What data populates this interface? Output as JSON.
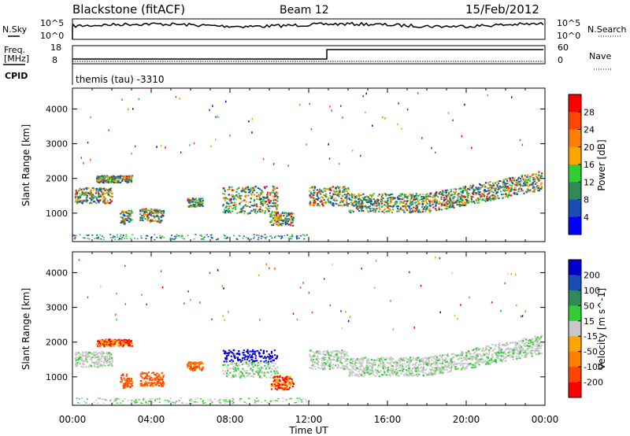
{
  "header": {
    "station": "Blackstone (fitACF)",
    "beam": "Beam 12",
    "date": "15/Feb/2012"
  },
  "params": {
    "nsky_label": "N.Sky",
    "nsearch_label": "N.Search",
    "freq_label_1": "Freq.",
    "freq_label_2": "[MHz]",
    "nave_label": "Nave",
    "cpid_label": "CPID",
    "cpid_text": "themis (tau) -3310",
    "noise_ticks": [
      "10^5",
      "10^0"
    ],
    "freq_ticks": [
      "18",
      "8"
    ],
    "nave_ticks": [
      "60",
      "0"
    ]
  },
  "chart_data": [
    {
      "type": "heatmap",
      "name": "power",
      "ylabel": "Slant Range [km]",
      "ylim": [
        180,
        4600
      ],
      "yticks": [
        1000,
        2000,
        3000,
        4000
      ],
      "xlim": [
        0,
        24
      ],
      "colorbar_label": "Power [dB]",
      "colorbar_ticks": [
        "4",
        "8",
        "12",
        "16",
        "20",
        "24",
        "28"
      ],
      "colors": [
        "#0000ff",
        "#1a4db3",
        "#2e8b57",
        "#32cd32",
        "#ffa500",
        "#ff7f00",
        "#ff4500",
        "#ff0000"
      ]
    },
    {
      "type": "heatmap",
      "name": "velocity",
      "ylabel": "Slant Range [km]",
      "ylim": [
        180,
        4600
      ],
      "yticks": [
        1000,
        2000,
        3000,
        4000
      ],
      "xlim": [
        0,
        24
      ],
      "colorbar_label": "Velocity [m s^-1]",
      "colorbar_ticks": [
        "200",
        "100",
        "50",
        "15",
        "-15",
        "-50",
        "-100",
        "-200"
      ],
      "colors": [
        "#0000cc",
        "#1a4db3",
        "#2e8b57",
        "#32cd32",
        "#c8c8c8",
        "#ffa500",
        "#ff7f00",
        "#ff4500",
        "#ff0000"
      ]
    }
  ],
  "xaxis": {
    "label": "Time UT",
    "ticks": [
      "00:00",
      "04:00",
      "08:00",
      "12:00",
      "16:00",
      "20:00",
      "00:00"
    ]
  }
}
